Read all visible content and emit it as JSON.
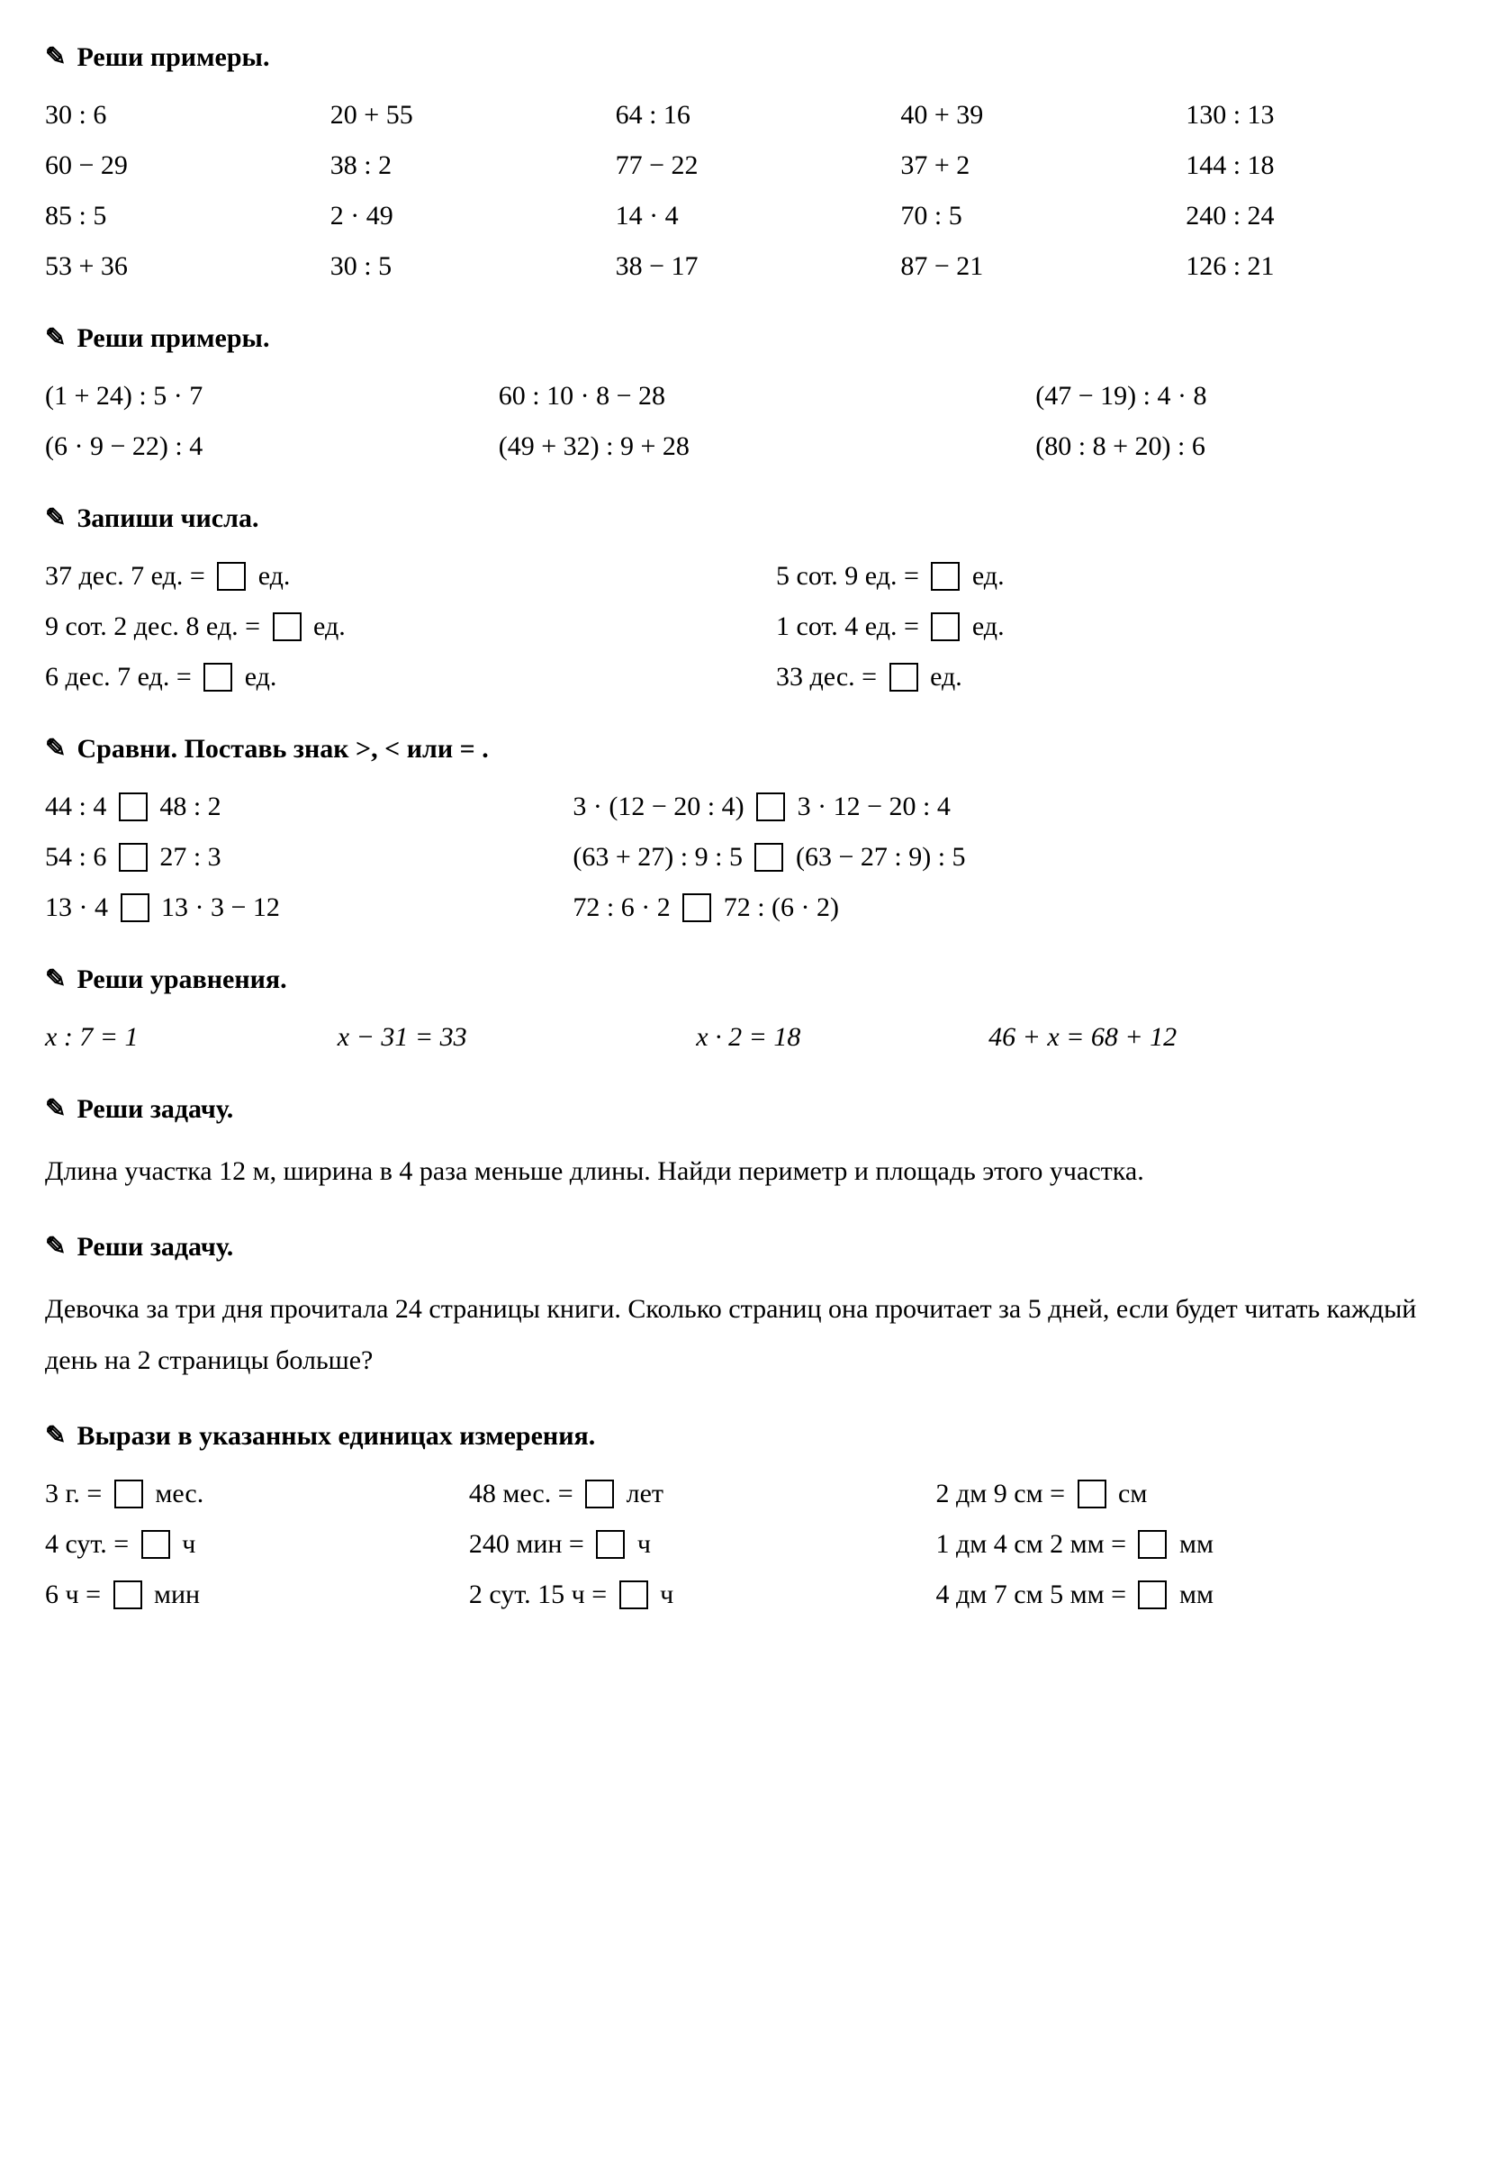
{
  "sec1": {
    "title": "Реши примеры.",
    "rows": [
      [
        "30 : 6",
        "20 + 55",
        "64 : 16",
        "40 + 39",
        "130 : 13"
      ],
      [
        "60 − 29",
        "38 : 2",
        "77 − 22",
        "37 + 2",
        "144 : 18"
      ],
      [
        "85 : 5",
        "2 · 49",
        "14 · 4",
        "70 : 5",
        "240 : 24"
      ],
      [
        "53 + 36",
        "30 : 5",
        "38 − 17",
        "87 − 21",
        "126 : 21"
      ]
    ]
  },
  "sec2": {
    "title": "Реши примеры.",
    "rows": [
      [
        "(1 + 24) : 5 · 7",
        "60 : 10 · 8 − 28",
        "(47 − 19) : 4 · 8"
      ],
      [
        "(6 · 9 − 22) : 4",
        "(49 + 32) : 9 + 28",
        "(80 : 8 + 20) : 6"
      ]
    ]
  },
  "sec3": {
    "title": "Запиши числа.",
    "rows": [
      {
        "l_pre": "37 дес. 7 ед. = ",
        "l_post": " ед.",
        "r_pre": "5 сот. 9 ед. = ",
        "r_post": " ед."
      },
      {
        "l_pre": "9 сот. 2 дес. 8 ед. = ",
        "l_post": " ед.",
        "r_pre": "1 сот. 4 ед. = ",
        "r_post": " ед."
      },
      {
        "l_pre": "6 дес. 7 ед. = ",
        "l_post": " ед.",
        "r_pre": "33 дес. = ",
        "r_post": " ед."
      }
    ]
  },
  "sec4": {
    "title": "Сравни. Поставь знак >, < или = .",
    "rows": [
      {
        "l1": "44 : 4 ",
        "l2": " 48 : 2",
        "r1": "3 · (12 − 20 : 4) ",
        "r2": " 3 · 12 − 20 : 4"
      },
      {
        "l1": "54 : 6 ",
        "l2": " 27 : 3",
        "r1": "(63 + 27) : 9 : 5 ",
        "r2": " (63 − 27 : 9) : 5"
      },
      {
        "l1": "13 · 4 ",
        "l2": " 13 · 3 − 12",
        "r1": "72 : 6 · 2 ",
        "r2": " 72 : (6 · 2)"
      }
    ]
  },
  "sec5": {
    "title": "Реши уравнения.",
    "items": [
      "x : 7 = 1",
      "x − 31 = 33",
      "x · 2 = 18",
      "46 + x = 68 + 12"
    ]
  },
  "sec6": {
    "title": "Реши задачу.",
    "text": "Длина участка 12 м, ширина в 4 раза меньше длины. Найди периметр и площадь этого участка."
  },
  "sec7": {
    "title": "Реши задачу.",
    "text": "Девочка за три дня прочитала 24 страницы книги. Сколько страниц она прочитает за 5 дней, если будет читать каждый день на 2 страницы больше?"
  },
  "sec8": {
    "title": "Вырази в указанных единицах измерения.",
    "rows": [
      {
        "a_pre": "3 г. = ",
        "a_post": " мес.",
        "b_pre": "48 мес. = ",
        "b_post": " лет",
        "c_pre": "2 дм 9 см = ",
        "c_post": " см"
      },
      {
        "a_pre": "4 сут. = ",
        "a_post": " ч",
        "b_pre": "240 мин = ",
        "b_post": " ч",
        "c_pre": "1 дм 4 см 2 мм = ",
        "c_post": " мм"
      },
      {
        "a_pre": "6 ч = ",
        "a_post": " мин",
        "b_pre": "2 сут. 15 ч = ",
        "b_post": " ч",
        "c_pre": "4 дм 7 см 5 мм = ",
        "c_post": " мм"
      }
    ]
  }
}
